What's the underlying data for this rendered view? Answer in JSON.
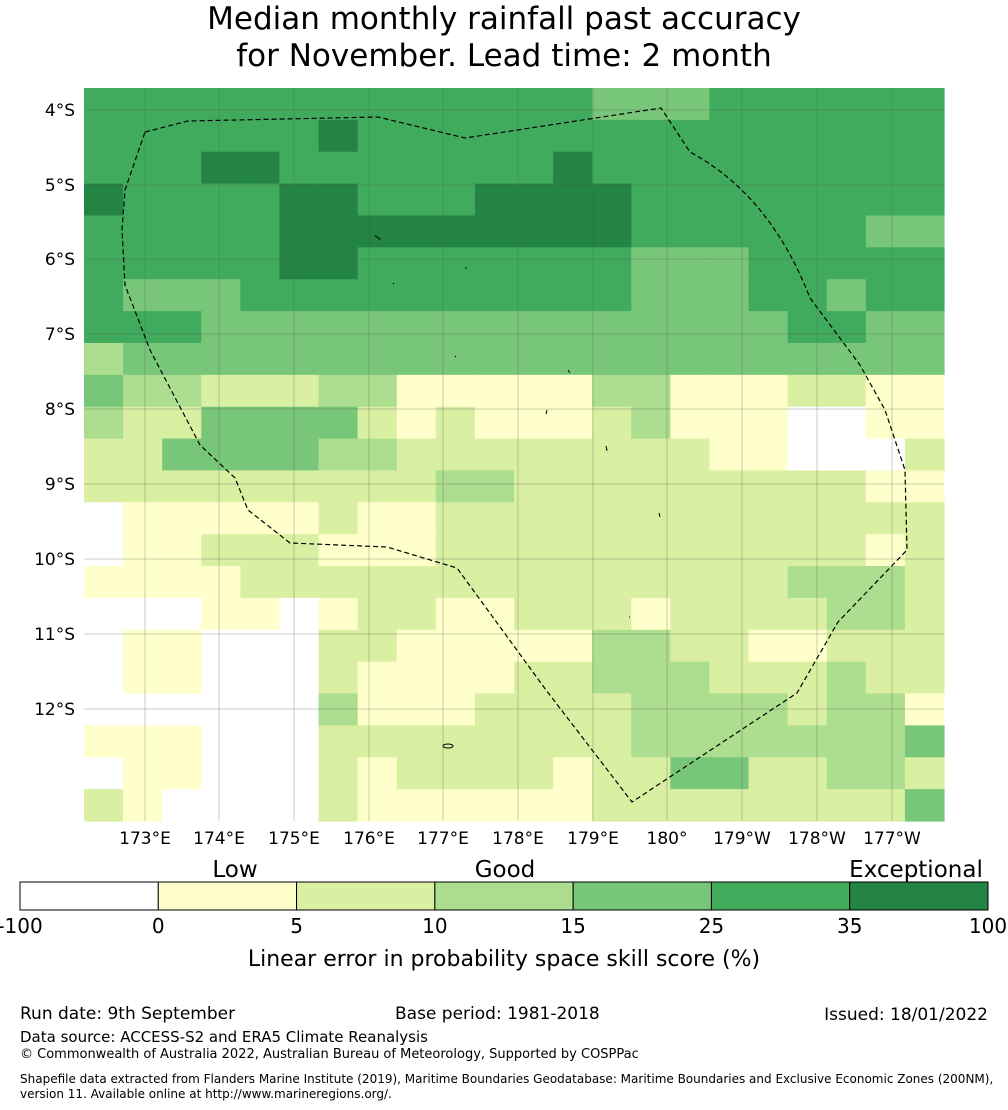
{
  "title_line1": "Median monthly rainfall past accuracy",
  "title_line2": "for November. Lead time: 2 month",
  "map": {
    "lat_labels": [
      "4°S",
      "5°S",
      "6°S",
      "7°S",
      "8°S",
      "9°S",
      "10°S",
      "11°S",
      "12°S"
    ],
    "lon_labels": [
      "173°E",
      "174°E",
      "175°E",
      "176°E",
      "177°E",
      "178°E",
      "179°E",
      "180°",
      "179°W",
      "178°W",
      "177°W"
    ],
    "category_colors": [
      "#ffffff",
      "#ffffcc",
      "#d9f0a3",
      "#addd8e",
      "#78c679",
      "#41ab5d",
      "#238443"
    ],
    "grid_rows": [
      "5555555555555444555555",
      "5555556555555555555555",
      "5556655555556555555555",
      "6555566555666655555555",
      "5555566666666655555544",
      "5555566555555544455555",
      "5444555555555544455455",
      "5554444444444444445544",
      "3444444444444444444444",
      "4332223311111331112211",
      "3224444212111231110011",
      "2244443322222222110002",
      "2222222223322222222211",
      "0111112112222222222222",
      "0112221112222222222212",
      "1111222222222222223332",
      "0001101221122212222332",
      "0110002211111332211222",
      "0110002111122333222322",
      "0000003111222233332331",
      "1110002222222233333334",
      "0110002122221224422332",
      "2100002111111222222224"
    ]
  },
  "legend": {
    "category_labels": [
      "Low",
      "Good",
      "Exceptional"
    ],
    "ticks": [
      "-100",
      "0",
      "5",
      "10",
      "15",
      "25",
      "35",
      "100"
    ],
    "colors": [
      "#ffffff",
      "#ffffcc",
      "#d9f0a3",
      "#addd8e",
      "#78c679",
      "#41ab5d",
      "#238443"
    ],
    "axis_label": "Linear error in probability space skill score (%)"
  },
  "footer": {
    "run_date": "Run date: 9th September",
    "base_period": "Base period: 1981-2018",
    "issued": "Issued: 18/01/2022",
    "data_source": "Data source: ACCESS-S2 and ERA5 Climate Reanalysis",
    "copyright": "© Commonwealth of Australia 2022, Australian Bureau of Meteorology, Supported by COSPPac",
    "shapefile_line1": "Shapefile data extracted from Flanders Marine Institute (2019), Maritime Boundaries Geodatabase: Maritime Boundaries and Exclusive Economic Zones (200NM),",
    "shapefile_line2": "version 11. Available online at http://www.marineregions.org/."
  }
}
